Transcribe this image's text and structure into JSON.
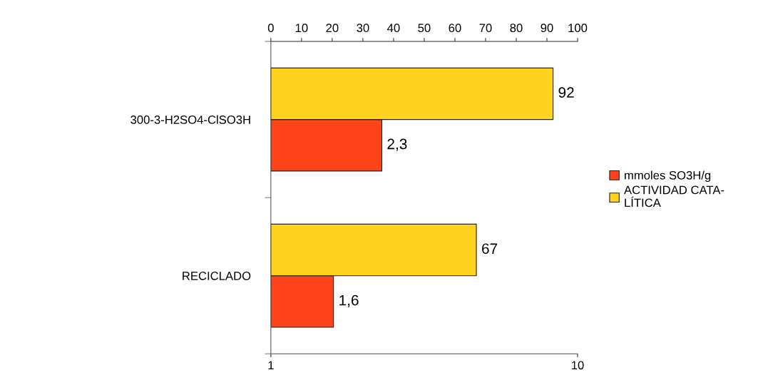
{
  "chart_data": {
    "type": "bar",
    "orientation": "horizontal",
    "categories": [
      "300-3-H2SO4-ClSO3H",
      "RECICLADO"
    ],
    "series": [
      {
        "name": "mmoles SO3H/g",
        "color": "#ff4419",
        "values": [
          2.3,
          1.6
        ],
        "value_labels": [
          "2,3",
          "1,6"
        ]
      },
      {
        "name": "ACTIVIDAD CATA-\nLÍTICA",
        "color": "#ffd320",
        "values": [
          92,
          67
        ],
        "value_labels": [
          "92",
          "67"
        ],
        "axis": "x2"
      }
    ],
    "log": "x",
    "xlim": [
      1,
      10
    ],
    "xticks": [
      1,
      10
    ],
    "x2lim": [
      0,
      100
    ],
    "x2ticks": [
      0,
      10,
      20,
      30,
      40,
      50,
      60,
      70,
      80,
      90,
      100
    ],
    "grid": false,
    "legend": "right"
  }
}
